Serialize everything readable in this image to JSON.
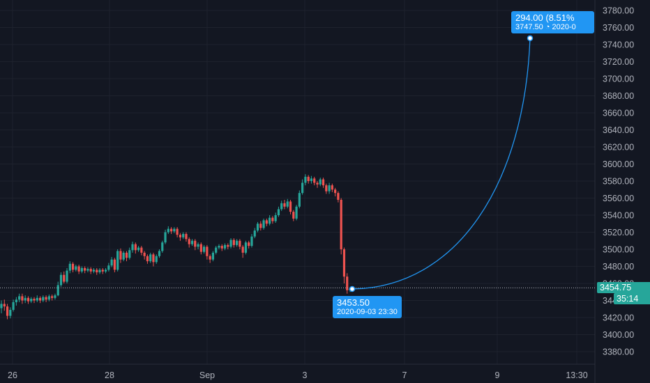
{
  "theme": {
    "background": "#131722",
    "grid": "#1e222d",
    "up_color": "#26a69a",
    "down_color": "#ef5350",
    "path_color": "#2196f3",
    "current_price_bg": "#26a69a",
    "countdown_bg": "#26a69a"
  },
  "price_axis": {
    "ticks": [
      "3780.00",
      "3760.00",
      "3740.00",
      "3720.00",
      "3700.00",
      "3680.00",
      "3660.00",
      "3640.00",
      "3620.00",
      "3600.00",
      "3580.00",
      "3560.00",
      "3540.00",
      "3520.00",
      "3500.00",
      "3480.00",
      "3460.00",
      "3440.00",
      "3420.00",
      "3400.00",
      "3380.00"
    ],
    "current_price": "3454.75",
    "countdown": "35:14"
  },
  "time_axis": {
    "ticks": [
      "26",
      "28",
      "Sep",
      "3",
      "7",
      "9",
      "13:30"
    ]
  },
  "callout_start": {
    "price": "3453.50",
    "time": "2020-09-03 23:30"
  },
  "callout_end": {
    "change": "294.00 (8.51%",
    "price": "3747.50",
    "time": "2020-0"
  },
  "chart_data": {
    "type": "line",
    "ylim": [
      3370,
      3790
    ],
    "candles": [
      [
        3431,
        3436,
        3425,
        3440
      ],
      [
        3436,
        3433,
        3428,
        3441
      ],
      [
        3433,
        3422,
        3418,
        3436
      ],
      [
        3422,
        3429,
        3419,
        3432
      ],
      [
        3429,
        3438,
        3427,
        3441
      ],
      [
        3438,
        3441,
        3434,
        3444
      ],
      [
        3441,
        3445,
        3438,
        3448
      ],
      [
        3445,
        3440,
        3436,
        3448
      ],
      [
        3440,
        3443,
        3437,
        3446
      ],
      [
        3443,
        3439,
        3436,
        3445
      ],
      [
        3439,
        3442,
        3437,
        3444
      ],
      [
        3442,
        3440,
        3437,
        3444
      ],
      [
        3440,
        3443,
        3438,
        3446
      ],
      [
        3443,
        3440,
        3437,
        3445
      ],
      [
        3440,
        3444,
        3438,
        3446
      ],
      [
        3444,
        3441,
        3438,
        3446
      ],
      [
        3441,
        3445,
        3439,
        3447
      ],
      [
        3445,
        3443,
        3440,
        3447
      ],
      [
        3443,
        3446,
        3441,
        3448
      ],
      [
        3446,
        3458,
        3445,
        3462
      ],
      [
        3458,
        3470,
        3456,
        3473
      ],
      [
        3470,
        3462,
        3460,
        3474
      ],
      [
        3462,
        3475,
        3460,
        3478
      ],
      [
        3475,
        3483,
        3472,
        3486
      ],
      [
        3483,
        3476,
        3473,
        3485
      ],
      [
        3476,
        3480,
        3474,
        3482
      ],
      [
        3480,
        3474,
        3471,
        3482
      ],
      [
        3474,
        3478,
        3472,
        3480
      ],
      [
        3478,
        3475,
        3472,
        3480
      ],
      [
        3475,
        3477,
        3473,
        3479
      ],
      [
        3477,
        3474,
        3471,
        3479
      ],
      [
        3474,
        3476,
        3472,
        3478
      ],
      [
        3476,
        3473,
        3470,
        3478
      ],
      [
        3473,
        3476,
        3471,
        3478
      ],
      [
        3476,
        3474,
        3471,
        3478
      ],
      [
        3474,
        3476,
        3472,
        3478
      ],
      [
        3476,
        3481,
        3474,
        3484
      ],
      [
        3481,
        3488,
        3479,
        3491
      ],
      [
        3488,
        3476,
        3473,
        3490
      ],
      [
        3476,
        3498,
        3474,
        3500
      ],
      [
        3498,
        3488,
        3484,
        3501
      ],
      [
        3488,
        3496,
        3486,
        3498
      ],
      [
        3496,
        3490,
        3486,
        3498
      ],
      [
        3490,
        3499,
        3488,
        3502
      ],
      [
        3499,
        3506,
        3496,
        3509
      ],
      [
        3506,
        3499,
        3495,
        3508
      ],
      [
        3499,
        3502,
        3497,
        3504
      ],
      [
        3502,
        3496,
        3493,
        3504
      ],
      [
        3496,
        3492,
        3488,
        3498
      ],
      [
        3492,
        3486,
        3483,
        3494
      ],
      [
        3486,
        3494,
        3484,
        3496
      ],
      [
        3494,
        3485,
        3480,
        3496
      ],
      [
        3485,
        3492,
        3483,
        3494
      ],
      [
        3492,
        3498,
        3490,
        3500
      ],
      [
        3498,
        3508,
        3496,
        3510
      ],
      [
        3508,
        3520,
        3506,
        3523
      ],
      [
        3520,
        3524,
        3518,
        3527
      ],
      [
        3524,
        3521,
        3518,
        3526
      ],
      [
        3521,
        3524,
        3519,
        3526
      ],
      [
        3524,
        3517,
        3514,
        3526
      ],
      [
        3517,
        3514,
        3510,
        3519
      ],
      [
        3514,
        3518,
        3512,
        3520
      ],
      [
        3518,
        3512,
        3509,
        3520
      ],
      [
        3512,
        3506,
        3502,
        3514
      ],
      [
        3506,
        3510,
        3504,
        3512
      ],
      [
        3510,
        3503,
        3499,
        3512
      ],
      [
        3503,
        3506,
        3500,
        3508
      ],
      [
        3506,
        3497,
        3494,
        3508
      ],
      [
        3497,
        3503,
        3495,
        3505
      ],
      [
        3503,
        3492,
        3488,
        3505
      ],
      [
        3492,
        3488,
        3484,
        3494
      ],
      [
        3488,
        3496,
        3486,
        3498
      ],
      [
        3496,
        3502,
        3494,
        3504
      ],
      [
        3502,
        3504,
        3500,
        3506
      ],
      [
        3504,
        3501,
        3498,
        3506
      ],
      [
        3501,
        3505,
        3499,
        3507
      ],
      [
        3505,
        3503,
        3500,
        3507
      ],
      [
        3503,
        3511,
        3501,
        3513
      ],
      [
        3511,
        3505,
        3502,
        3513
      ],
      [
        3505,
        3510,
        3503,
        3512
      ],
      [
        3510,
        3503,
        3500,
        3512
      ],
      [
        3503,
        3496,
        3490,
        3505
      ],
      [
        3496,
        3508,
        3494,
        3510
      ],
      [
        3508,
        3504,
        3501,
        3510
      ],
      [
        3504,
        3515,
        3502,
        3518
      ],
      [
        3515,
        3522,
        3513,
        3525
      ],
      [
        3522,
        3530,
        3520,
        3532
      ],
      [
        3530,
        3525,
        3522,
        3533
      ],
      [
        3525,
        3534,
        3523,
        3536
      ],
      [
        3534,
        3530,
        3527,
        3536
      ],
      [
        3530,
        3537,
        3528,
        3540
      ],
      [
        3537,
        3533,
        3530,
        3539
      ],
      [
        3533,
        3540,
        3531,
        3543
      ],
      [
        3540,
        3547,
        3538,
        3550
      ],
      [
        3547,
        3554,
        3545,
        3557
      ],
      [
        3554,
        3550,
        3547,
        3558
      ],
      [
        3550,
        3556,
        3548,
        3559
      ],
      [
        3556,
        3544,
        3541,
        3558
      ],
      [
        3544,
        3536,
        3533,
        3546
      ],
      [
        3536,
        3550,
        3534,
        3552
      ],
      [
        3550,
        3566,
        3548,
        3569
      ],
      [
        3566,
        3578,
        3564,
        3582
      ],
      [
        3578,
        3585,
        3575,
        3588
      ],
      [
        3585,
        3580,
        3577,
        3587
      ],
      [
        3580,
        3583,
        3577,
        3586
      ],
      [
        3583,
        3578,
        3575,
        3585
      ],
      [
        3578,
        3576,
        3572,
        3580
      ],
      [
        3576,
        3582,
        3574,
        3584
      ],
      [
        3582,
        3575,
        3572,
        3584
      ],
      [
        3575,
        3568,
        3565,
        3577
      ],
      [
        3568,
        3575,
        3565,
        3578
      ],
      [
        3575,
        3570,
        3567,
        3577
      ],
      [
        3570,
        3566,
        3562,
        3572
      ],
      [
        3566,
        3558,
        3555,
        3568
      ],
      [
        3558,
        3500,
        3494,
        3560
      ],
      [
        3500,
        3468,
        3460,
        3502
      ],
      [
        3468,
        3452,
        3448,
        3472
      ],
      [
        3452,
        3454,
        3450,
        3456
      ]
    ],
    "path": {
      "start_price": 3453.5,
      "end_price": 3747.5
    }
  }
}
